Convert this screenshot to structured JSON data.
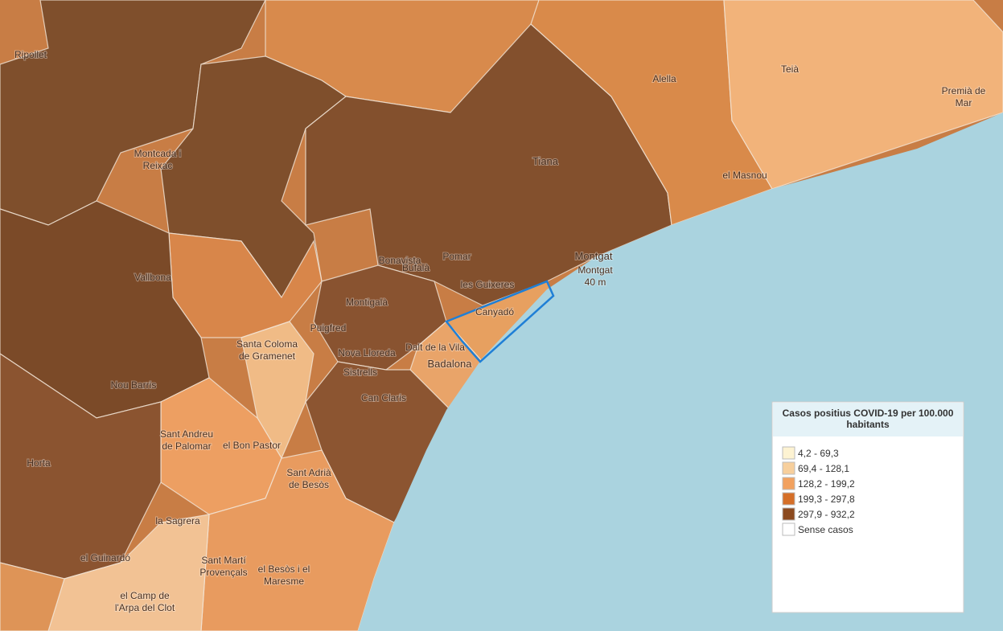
{
  "legend": {
    "title": [
      "Casos positius COVID-19 per 100.000",
      "habitants"
    ],
    "items": [
      {
        "label": "4,2 - 69,3",
        "color": "#fdf3d2"
      },
      {
        "label": "69,4 - 128,1",
        "color": "#f7cf9c"
      },
      {
        "label": "128,2 - 199,2",
        "color": "#f2a15f"
      },
      {
        "label": "199,3 - 297,8",
        "color": "#d56f28"
      },
      {
        "label": "297,9 - 932,2",
        "color": "#8c4a1f"
      },
      {
        "label": "Sense casos",
        "color": "#ffffff"
      }
    ]
  },
  "places": [
    {
      "label": [
        "Ripollet"
      ]
    },
    {
      "label": [
        "Montcada i",
        "Reixac"
      ]
    },
    {
      "label": [
        "Tiana"
      ]
    },
    {
      "label": [
        "Alella"
      ]
    },
    {
      "label": [
        "Teià"
      ]
    },
    {
      "label": [
        "Premià de",
        "Mar"
      ]
    },
    {
      "label": [
        "el Masnou"
      ]
    },
    {
      "label": [
        "Montgat"
      ]
    },
    {
      "label": [
        "Badalona"
      ]
    },
    {
      "label": [
        "Canyadó"
      ]
    },
    {
      "label": [
        "Pomar"
      ]
    },
    {
      "label": [
        "les Guixeres"
      ]
    },
    {
      "label": [
        "Bufalà"
      ]
    },
    {
      "label": [
        "Bonavista"
      ]
    },
    {
      "label": [
        "Montigalà"
      ]
    },
    {
      "label": [
        "Puigfred"
      ]
    },
    {
      "label": [
        "Santa Coloma",
        "de Gramenet"
      ]
    },
    {
      "label": [
        "Nova Lloreda"
      ]
    },
    {
      "label": [
        "Sistrells"
      ]
    },
    {
      "label": [
        "Dalt de la Vila"
      ]
    },
    {
      "label": [
        "Can Claris"
      ]
    },
    {
      "label": [
        "Vallbona"
      ]
    },
    {
      "label": [
        "Nou Barris"
      ]
    },
    {
      "label": [
        "el Bon Pastor"
      ]
    },
    {
      "label": [
        "Sant Andreu",
        "de Palomar"
      ]
    },
    {
      "label": [
        "Horta"
      ]
    },
    {
      "label": [
        "la Sagrera"
      ]
    },
    {
      "label": [
        "el Guinardó"
      ]
    },
    {
      "label": [
        "Sant Martí",
        "Provençals"
      ]
    },
    {
      "label": [
        "el Besòs i el",
        "Maresme"
      ]
    },
    {
      "label": [
        "Sant Adrià",
        "de Besòs"
      ]
    },
    {
      "label": [
        "el Camp de",
        "l'Arpa del Clot"
      ]
    },
    {
      "label": [
        "Montgat",
        "40 m"
      ]
    }
  ]
}
